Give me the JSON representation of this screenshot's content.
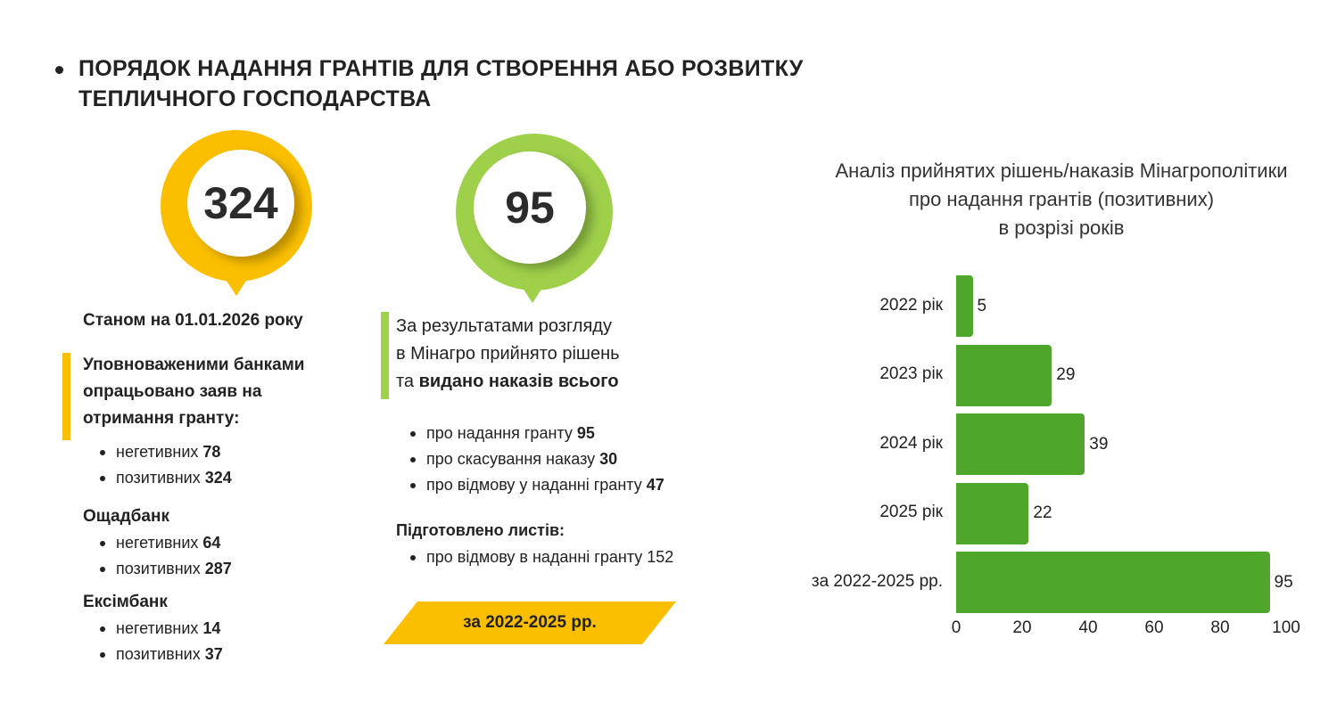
{
  "header": {
    "title_line1": "ПОРЯДОК НАДАННЯ ГРАНТІВ ДЛЯ СТВОРЕННЯ АБО РОЗВИТКУ",
    "title_line2": "ТЕПЛИЧНОГО ГОСПОДАРСТВА"
  },
  "colors": {
    "yellow": "#fbbf00",
    "green": "#9ed04a",
    "bar": "#4ea72a"
  },
  "left": {
    "big_number": "324",
    "date": "Станом на 01.01.2026 року",
    "intro": [
      "Уповноваженими банками",
      "опрацьовано заяв на",
      "отримання гранту:"
    ],
    "total": [
      {
        "label": "негетивних ",
        "value": "78"
      },
      {
        "label": "позитивних ",
        "value": "324"
      }
    ],
    "banks": [
      {
        "name": "Ощадбанк",
        "items": [
          {
            "label": "негетивних  ",
            "value": "64"
          },
          {
            "label": "позитивних ",
            "value": "287"
          }
        ]
      },
      {
        "name": "Ексімбанк",
        "items": [
          {
            "label": "негетивних ",
            "value": "14"
          },
          {
            "label": "позитивних ",
            "value": "37"
          }
        ]
      }
    ]
  },
  "middle": {
    "big_number": "95",
    "intro_line1": "За результатами розгляду",
    "intro_line2": "в Мінагро  прийнято рішень",
    "intro_line3_plain": "та ",
    "intro_line3_bold": "видано наказів всього",
    "orders": [
      {
        "label": "про надання гранту ",
        "value": "95"
      },
      {
        "label": "про скасування наказу  ",
        "value": "30"
      },
      {
        "label": "про відмову у наданні гранту ",
        "value": "47"
      }
    ],
    "letters_title": "Підготовлено листів:",
    "letters": [
      {
        "label": "про відмову в наданні гранту 152"
      }
    ],
    "period_badge": "за 2022-2025 рр."
  },
  "chart_data": {
    "type": "bar",
    "orientation": "horizontal",
    "title_lines": [
      "Аналіз прийнятих рішень/наказів Мінагрополітики",
      "про надання грантів (позитивних)",
      "в розрізі років"
    ],
    "categories": [
      "2022 рік",
      "2023 рік",
      "2024 рік",
      "2025 рік",
      "за 2022-2025 рр."
    ],
    "values": [
      5,
      29,
      39,
      22,
      95
    ],
    "xlim": [
      0,
      100
    ],
    "xticks": [
      "0",
      "20",
      "40",
      "60",
      "80",
      "100"
    ],
    "grid": false
  }
}
